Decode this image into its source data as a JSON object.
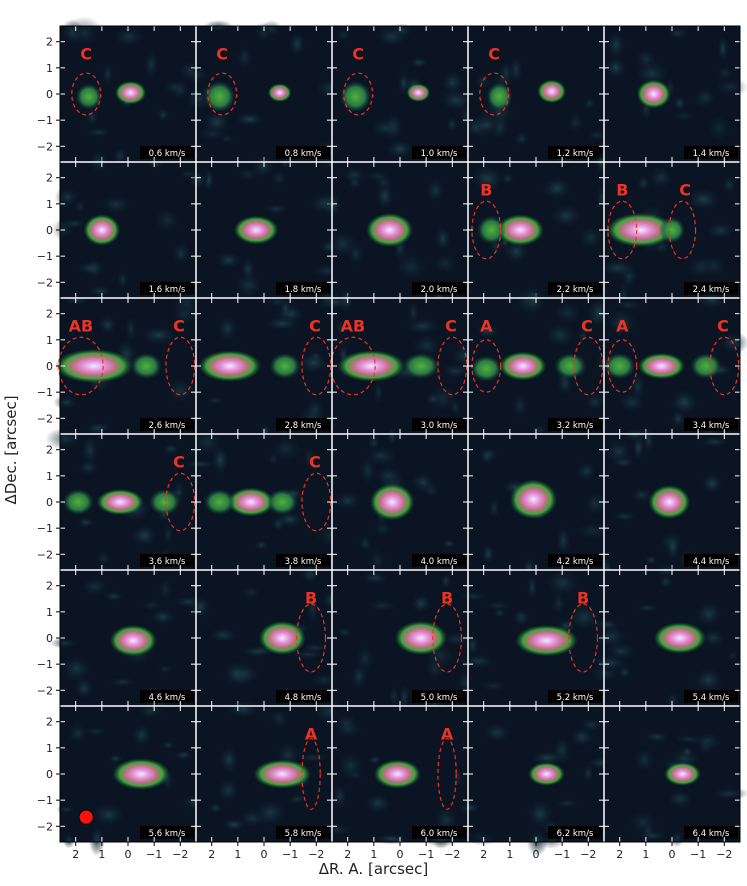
{
  "figure": {
    "ylabel": "ΔDec. [arcsec]",
    "xlabel": "ΔR. A. [arcsec]",
    "x_ticks": [
      "2",
      "1",
      "0",
      "−1",
      "−2"
    ],
    "y_ticks": [
      "2",
      "1",
      "0",
      "−1",
      "−2"
    ],
    "colors": {
      "background": "#0a1422",
      "ellipse": "#ee3322",
      "grid": "#ffffff",
      "beam": "#ff1010"
    }
  },
  "chart_data": {
    "type": "heatmap",
    "description_axes": {
      "x_range": [
        2.6,
        -2.6
      ],
      "y_range": [
        -2.6,
        2.6
      ]
    },
    "panels": [
      {
        "velocity": "0.6 km/s",
        "labels": [
          "C"
        ]
      },
      {
        "velocity": "0.8 km/s",
        "labels": [
          "C"
        ]
      },
      {
        "velocity": "1.0 km/s",
        "labels": [
          "C"
        ]
      },
      {
        "velocity": "1.2 km/s",
        "labels": [
          "C"
        ]
      },
      {
        "velocity": "1.4 km/s",
        "labels": []
      },
      {
        "velocity": "1.6 km/s",
        "labels": []
      },
      {
        "velocity": "1.8 km/s",
        "labels": []
      },
      {
        "velocity": "2.0 km/s",
        "labels": []
      },
      {
        "velocity": "2.2 km/s",
        "labels": [
          "B"
        ]
      },
      {
        "velocity": "2.4 km/s",
        "labels": [
          "B",
          "C"
        ]
      },
      {
        "velocity": "2.6 km/s",
        "labels": [
          "AB",
          "C"
        ]
      },
      {
        "velocity": "2.8 km/s",
        "labels": [
          "C"
        ]
      },
      {
        "velocity": "3.0 km/s",
        "labels": [
          "AB",
          "C"
        ]
      },
      {
        "velocity": "3.2 km/s",
        "labels": [
          "A",
          "C"
        ]
      },
      {
        "velocity": "3.4 km/s",
        "labels": [
          "A",
          "C"
        ]
      },
      {
        "velocity": "3.6 km/s",
        "labels": [
          "C"
        ]
      },
      {
        "velocity": "3.8 km/s",
        "labels": [
          "C"
        ]
      },
      {
        "velocity": "4.0 km/s",
        "labels": []
      },
      {
        "velocity": "4.2 km/s",
        "labels": []
      },
      {
        "velocity": "4.4 km/s",
        "labels": []
      },
      {
        "velocity": "4.6 km/s",
        "labels": []
      },
      {
        "velocity": "4.8 km/s",
        "labels": [
          "B"
        ]
      },
      {
        "velocity": "5.0 km/s",
        "labels": [
          "B"
        ]
      },
      {
        "velocity": "5.2 km/s",
        "labels": [
          "B"
        ]
      },
      {
        "velocity": "5.4 km/s",
        "labels": []
      },
      {
        "velocity": "5.6 km/s",
        "labels": []
      },
      {
        "velocity": "5.8 km/s",
        "labels": [
          "A"
        ]
      },
      {
        "velocity": "6.0 km/s",
        "labels": [
          "A"
        ]
      },
      {
        "velocity": "6.2 km/s",
        "labels": []
      },
      {
        "velocity": "6.4 km/s",
        "labels": []
      }
    ]
  }
}
